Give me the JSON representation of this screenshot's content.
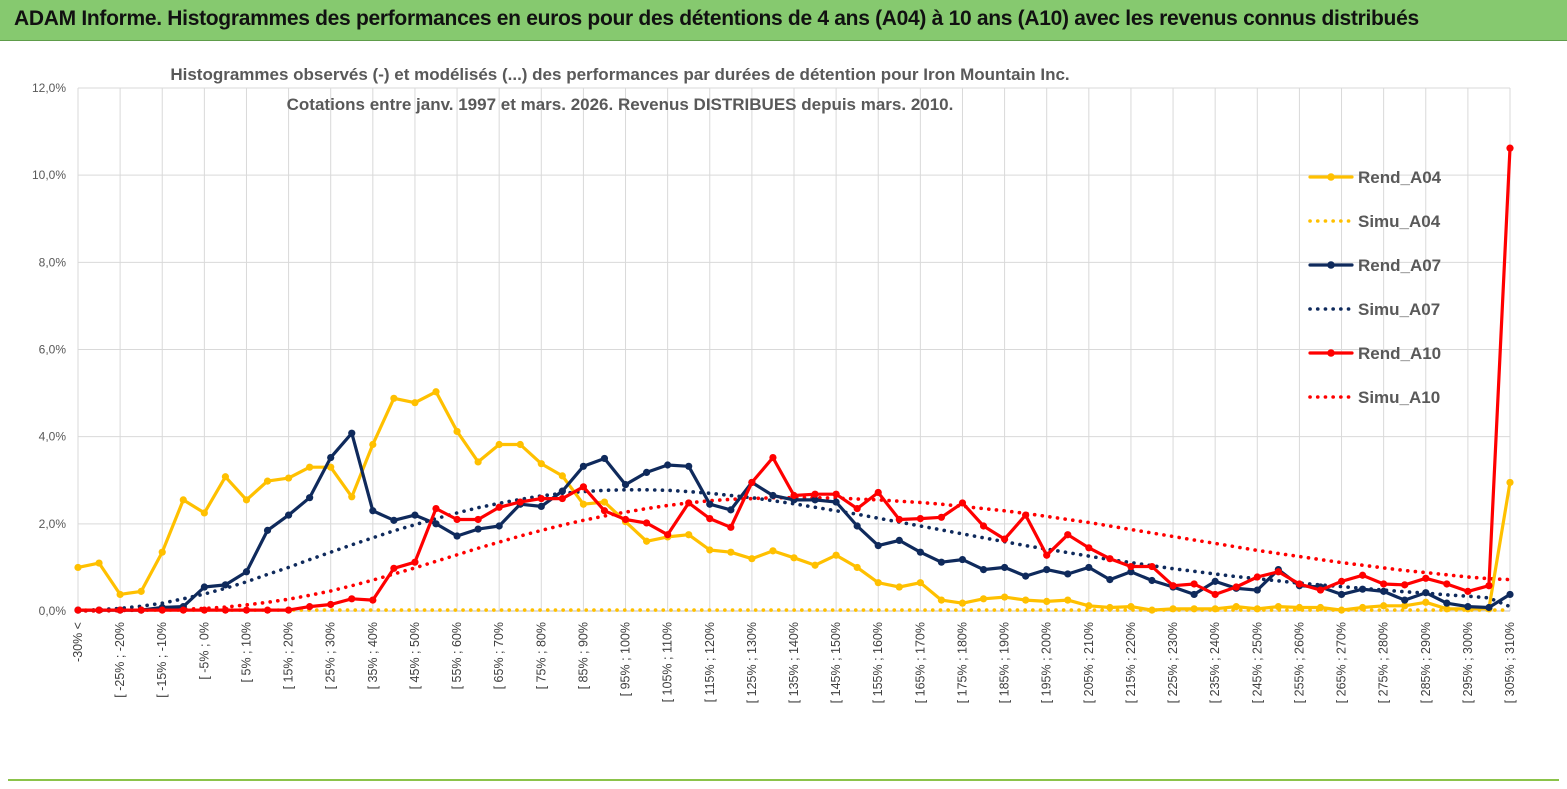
{
  "banner": {
    "title": "ADAM Informe. Histogrammes des performances en euros pour des détentions de 4 ans (A04) à 10 ans (A10) avec les revenus connus distribués"
  },
  "colors": {
    "banner_bg": "#86c96f",
    "a04": "#ffc000",
    "a07": "#0f2a5c",
    "a10": "#ff0000",
    "grid": "#d9d9d9"
  },
  "chart_data": {
    "type": "line",
    "title_line1": "Histogrammes observés (-) et modélisés (...) des performances par durées de détention pour Iron Mountain Inc.",
    "title_line2": "Cotations entre janv. 1997 et mars. 2026. Revenus DISTRIBUES depuis mars. 2010.",
    "ylim": [
      0,
      12
    ],
    "yticks": [
      "0,0%",
      "2,0%",
      "4,0%",
      "6,0%",
      "8,0%",
      "10,0%",
      "12,0%"
    ],
    "xlabels": [
      "-30% <",
      "[ -25% ; -20%",
      "[ -15% ; -10%",
      "[ -5% ; 0%",
      "[ 5% ; 10%",
      "[ 15% ; 20%",
      "[ 25% ; 30%",
      "[ 35% ; 40%",
      "[ 45% ; 50%",
      "[ 55% ; 60%",
      "[ 65% ; 70%",
      "[ 75% ; 80%",
      "[ 85% ; 90%",
      "[ 95% ; 100%",
      "[ 105% ; 110%",
      "[ 115% ; 120%",
      "[ 125% ; 130%",
      "[ 135% ; 140%",
      "[ 145% ; 150%",
      "[ 155% ; 160%",
      "[ 165% ; 170%",
      "[ 175% ; 180%",
      "[ 185% ; 190%",
      "[ 195% ; 200%",
      "[ 205% ; 210%",
      "[ 215% ; 220%",
      "[ 225% ; 230%",
      "[ 235% ; 240%",
      "[ 245% ; 250%",
      "[ 255% ; 260%",
      "[ 265% ; 270%",
      "[ 275% ; 280%",
      "[ 285% ; 290%",
      "[ 295% ; 300%",
      "[ 305% ; 310%"
    ],
    "n_points": 69,
    "series": [
      {
        "name": "Rend_A04",
        "style": "solid",
        "color": "#ffc000",
        "values": [
          1.0,
          1.1,
          0.38,
          0.45,
          1.35,
          2.55,
          2.25,
          3.08,
          2.55,
          2.98,
          3.05,
          3.3,
          3.3,
          2.62,
          3.82,
          4.88,
          4.78,
          5.03,
          4.12,
          3.42,
          3.82,
          3.82,
          3.38,
          3.1,
          2.45,
          2.5,
          2.05,
          1.6,
          1.7,
          1.75,
          1.4,
          1.35,
          1.2,
          1.38,
          1.22,
          1.05,
          1.28,
          1.0,
          0.65,
          0.55,
          0.65,
          0.25,
          0.18,
          0.28,
          0.32,
          0.25,
          0.22,
          0.25,
          0.12,
          0.08,
          0.1,
          0.02,
          0.05,
          0.05,
          0.05,
          0.1,
          0.05,
          0.1,
          0.08,
          0.08,
          0.02,
          0.08,
          0.12,
          0.12,
          0.2,
          0.05,
          0.05,
          0.05,
          2.95
        ]
      },
      {
        "name": "Simu_A04",
        "style": "dotted",
        "color": "#ffc000",
        "values": [
          0.02,
          0.02,
          0.02,
          0.02,
          0.02,
          0.02,
          0.02,
          0.02,
          0.02,
          0.02,
          0.02,
          0.02,
          0.02,
          0.02,
          0.02,
          0.02,
          0.02,
          0.02,
          0.02,
          0.02,
          0.02,
          0.02,
          0.02,
          0.02,
          0.02,
          0.02,
          0.02,
          0.02,
          0.02,
          0.02,
          0.02,
          0.02,
          0.02,
          0.02,
          0.02,
          0.02,
          0.02,
          0.02,
          0.02,
          0.02,
          0.02,
          0.02,
          0.02,
          0.02,
          0.02,
          0.02,
          0.02,
          0.02,
          0.02,
          0.02,
          0.02,
          0.02,
          0.02,
          0.02,
          0.02,
          0.02,
          0.02,
          0.02,
          0.02,
          0.02,
          0.02,
          0.02,
          0.02,
          0.02,
          0.02,
          0.02,
          0.02,
          0.02,
          0.02
        ]
      },
      {
        "name": "Rend_A07",
        "style": "solid",
        "color": "#0f2a5c",
        "values": [
          0.02,
          0.02,
          0.02,
          0.02,
          0.08,
          0.1,
          0.55,
          0.6,
          0.9,
          1.85,
          2.2,
          2.6,
          3.52,
          4.08,
          2.3,
          2.08,
          2.2,
          2.0,
          1.72,
          1.88,
          1.95,
          2.45,
          2.4,
          2.75,
          3.32,
          3.5,
          2.9,
          3.18,
          3.35,
          3.32,
          2.45,
          2.32,
          2.95,
          2.65,
          2.55,
          2.55,
          2.5,
          1.95,
          1.5,
          1.62,
          1.35,
          1.12,
          1.18,
          0.95,
          1.0,
          0.8,
          0.95,
          0.85,
          1.0,
          0.72,
          0.9,
          0.7,
          0.55,
          0.38,
          0.68,
          0.52,
          0.48,
          0.95,
          0.58,
          0.55,
          0.38,
          0.5,
          0.45,
          0.25,
          0.42,
          0.18,
          0.1,
          0.08,
          0.38
        ]
      },
      {
        "name": "Simu_A07",
        "style": "dotted",
        "color": "#0f2a5c",
        "values": [
          0.01,
          0.03,
          0.06,
          0.11,
          0.18,
          0.28,
          0.39,
          0.52,
          0.67,
          0.84,
          1.0,
          1.18,
          1.35,
          1.52,
          1.68,
          1.84,
          1.98,
          2.12,
          2.25,
          2.37,
          2.47,
          2.56,
          2.64,
          2.7,
          2.74,
          2.77,
          2.78,
          2.78,
          2.77,
          2.74,
          2.7,
          2.65,
          2.6,
          2.53,
          2.46,
          2.38,
          2.3,
          2.22,
          2.13,
          2.04,
          1.95,
          1.86,
          1.77,
          1.68,
          1.59,
          1.5,
          1.42,
          1.34,
          1.26,
          1.18,
          1.11,
          1.04,
          0.97,
          0.91,
          0.85,
          0.79,
          0.74,
          0.69,
          0.64,
          0.6,
          0.56,
          0.52,
          0.48,
          0.44,
          0.41,
          0.37,
          0.34,
          0.3,
          0.1
        ]
      },
      {
        "name": "Rend_A10",
        "style": "solid",
        "color": "#ff0000",
        "values": [
          0.02,
          0.02,
          0.02,
          0.02,
          0.02,
          0.02,
          0.02,
          0.02,
          0.02,
          0.02,
          0.02,
          0.1,
          0.15,
          0.28,
          0.25,
          0.98,
          1.12,
          2.35,
          2.1,
          2.1,
          2.38,
          2.5,
          2.58,
          2.58,
          2.85,
          2.3,
          2.1,
          2.02,
          1.75,
          2.48,
          2.12,
          1.92,
          2.95,
          3.52,
          2.65,
          2.68,
          2.68,
          2.35,
          2.72,
          2.1,
          2.12,
          2.15,
          2.48,
          1.95,
          1.65,
          2.2,
          1.28,
          1.75,
          1.45,
          1.2,
          1.02,
          1.02,
          0.58,
          0.62,
          0.38,
          0.55,
          0.78,
          0.9,
          0.62,
          0.48,
          0.68,
          0.82,
          0.62,
          0.6,
          0.75,
          0.62,
          0.45,
          0.58,
          10.62
        ]
      },
      {
        "name": "Simu_A10",
        "style": "dotted",
        "color": "#ff0000",
        "values": [
          0.0,
          0.0,
          0.01,
          0.02,
          0.03,
          0.04,
          0.06,
          0.09,
          0.14,
          0.2,
          0.27,
          0.36,
          0.46,
          0.58,
          0.71,
          0.85,
          0.99,
          1.14,
          1.29,
          1.44,
          1.58,
          1.72,
          1.85,
          1.97,
          2.08,
          2.18,
          2.27,
          2.35,
          2.42,
          2.48,
          2.53,
          2.56,
          2.58,
          2.6,
          2.6,
          2.6,
          2.59,
          2.57,
          2.55,
          2.52,
          2.49,
          2.45,
          2.4,
          2.35,
          2.3,
          2.24,
          2.17,
          2.1,
          2.03,
          1.95,
          1.87,
          1.79,
          1.71,
          1.63,
          1.55,
          1.47,
          1.39,
          1.32,
          1.25,
          1.18,
          1.11,
          1.05,
          0.99,
          0.93,
          0.88,
          0.83,
          0.78,
          0.74,
          0.72
        ]
      }
    ]
  }
}
